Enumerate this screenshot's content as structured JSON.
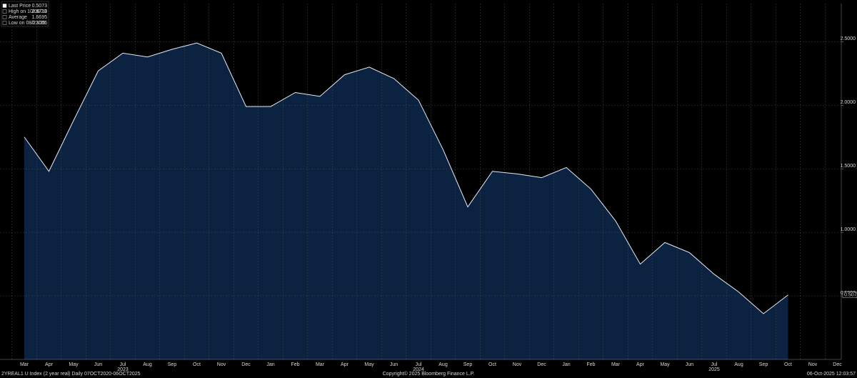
{
  "chart_data": {
    "type": "area",
    "legend": [
      {
        "label": "Last Price",
        "value": "0.5073"
      },
      {
        "label": "High on 10/06/23",
        "value": "2.6710"
      },
      {
        "label": "Average",
        "value": "1.6695"
      },
      {
        "label": "Low on 08/27/25",
        "value": "0.3066"
      }
    ],
    "categories": [
      "Mar",
      "Apr",
      "May",
      "Jun",
      "Jul",
      "Aug",
      "Sep",
      "Oct",
      "Nov",
      "Dec",
      "Jan",
      "Feb",
      "Mar",
      "Apr",
      "May",
      "Jun",
      "Jul",
      "Aug",
      "Sep",
      "Oct",
      "Nov",
      "Dec",
      "Jan",
      "Feb",
      "Mar",
      "Apr",
      "May",
      "Jun",
      "Jul",
      "Aug",
      "Sep",
      "Oct",
      "Nov",
      "Dec"
    ],
    "year_labels": [
      {
        "label": "2023",
        "category": 4
      },
      {
        "label": "2024",
        "category": 16
      },
      {
        "label": "2025",
        "category": 28
      }
    ],
    "series": [
      {
        "name": "2YREAL1 U Index",
        "color": "#e6ecf5",
        "fill": "#0b2241",
        "values": [
          1.75,
          1.48,
          1.88,
          2.27,
          2.41,
          2.38,
          2.44,
          2.49,
          2.41,
          1.99,
          1.99,
          2.1,
          2.07,
          2.24,
          2.3,
          2.21,
          2.04,
          1.65,
          1.2,
          1.48,
          1.46,
          1.43,
          1.51,
          1.34,
          1.09,
          0.75,
          0.92,
          0.84,
          0.67,
          0.53,
          0.36,
          0.5073,
          null,
          null
        ]
      }
    ],
    "last_value_label": "0.5073",
    "ylim": [
      0,
      2.8
    ],
    "yticks": [
      {
        "value": 0.5,
        "label": "0.5000"
      },
      {
        "value": 1.0,
        "label": "1.0000"
      },
      {
        "value": 1.5,
        "label": "1.5000"
      },
      {
        "value": 2.0,
        "label": "2.0000"
      },
      {
        "value": 2.5,
        "label": "2.5000"
      }
    ],
    "grid": true,
    "footer_left": "2YREAL1 U Index (2 year real) Daily 07OCT2020-06OCT2025",
    "footer_center": "Copyright© 2025 Bloomberg Finance L.P.",
    "footer_right": "06-Oct-2025 12:03:57"
  }
}
